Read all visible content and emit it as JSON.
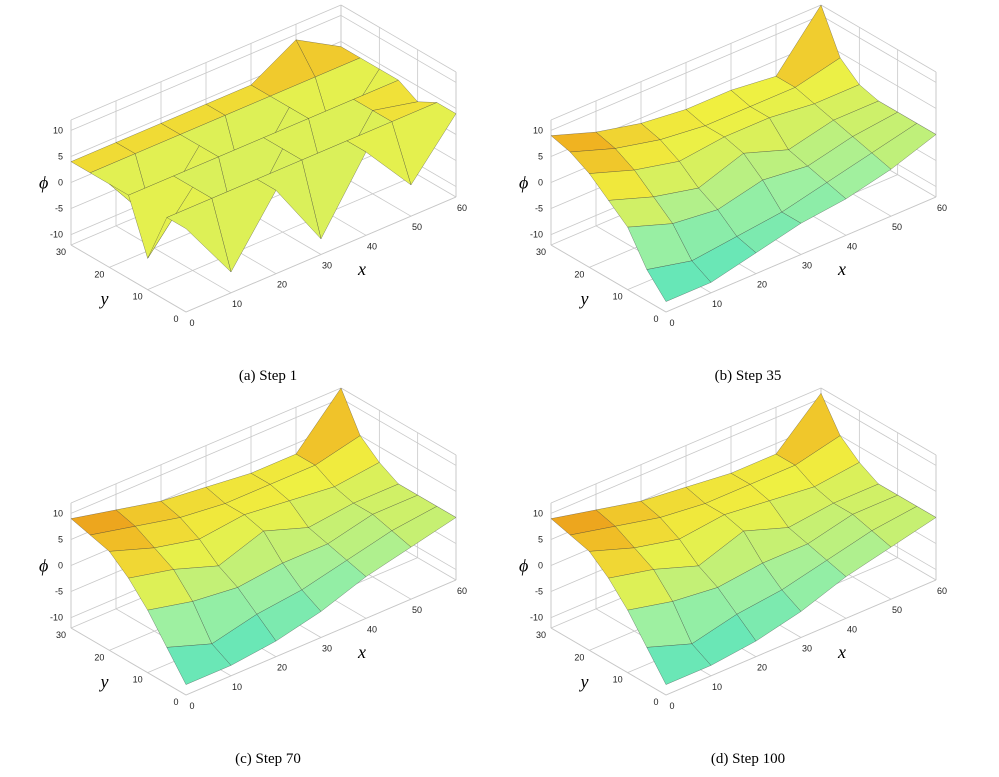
{
  "chart_data": [
    {
      "type": "surface",
      "caption": "(a) Step 1",
      "xlabel": "x",
      "ylabel": "y",
      "zlabel": "ϕ",
      "x": [
        0,
        10,
        20,
        30,
        40,
        50,
        60
      ],
      "y": [
        0,
        5,
        10,
        15,
        20,
        25,
        30
      ],
      "z": [
        [
          4,
          -8,
          4,
          -9,
          4,
          -6,
          4
        ],
        [
          4,
          4,
          4,
          4,
          4,
          4,
          4
        ],
        [
          -6,
          4,
          -9,
          4,
          -8,
          4,
          2
        ],
        [
          4,
          4,
          4,
          4,
          4,
          4,
          4
        ],
        [
          4,
          -7,
          4,
          -8,
          4,
          -6,
          4
        ],
        [
          4,
          4,
          4,
          4,
          4,
          4,
          4
        ],
        [
          4,
          4,
          4,
          4,
          4,
          9,
          4
        ]
      ],
      "xlim": [
        0,
        60
      ],
      "ylim": [
        0,
        30
      ],
      "zlim": [
        -12,
        12
      ],
      "xticks": [
        0,
        10,
        20,
        30,
        40,
        50,
        60
      ],
      "yticks": [
        0,
        10,
        20,
        30
      ],
      "zticks": [
        -10,
        -5,
        0,
        5,
        10
      ]
    },
    {
      "type": "surface",
      "caption": "(b) Step 35",
      "xlabel": "x",
      "ylabel": "y",
      "zlabel": "ϕ",
      "x": [
        0,
        10,
        20,
        30,
        40,
        50,
        60
      ],
      "y": [
        0,
        5,
        10,
        15,
        20,
        25,
        30
      ],
      "z": [
        [
          -10,
          -10,
          -8,
          -6,
          -5,
          -3,
          0
        ],
        [
          -6,
          -8,
          -7,
          -6,
          -4,
          -2,
          0
        ],
        [
          0,
          -3,
          -4,
          -2,
          -3,
          -1,
          0
        ],
        [
          3,
          0,
          -2,
          1,
          -2,
          0,
          0
        ],
        [
          6,
          3,
          1,
          2,
          2,
          1,
          1
        ],
        [
          8,
          5,
          3,
          2,
          2,
          2,
          4
        ],
        [
          9,
          6,
          4,
          3,
          3,
          2,
          12
        ]
      ],
      "xlim": [
        0,
        60
      ],
      "ylim": [
        0,
        30
      ],
      "zlim": [
        -12,
        12
      ],
      "xticks": [
        0,
        10,
        20,
        30,
        40,
        50,
        60
      ],
      "yticks": [
        0,
        10,
        20,
        30
      ],
      "zticks": [
        -10,
        -5,
        0,
        5,
        10
      ]
    },
    {
      "type": "surface",
      "caption": "(c) Step 70",
      "xlabel": "x",
      "ylabel": "y",
      "zlabel": "ϕ",
      "x": [
        0,
        10,
        20,
        30,
        40,
        50,
        60
      ],
      "y": [
        0,
        5,
        10,
        15,
        20,
        25,
        30
      ],
      "z": [
        [
          -10,
          -10,
          -9,
          -7,
          -4,
          -2,
          0
        ],
        [
          -5,
          -8,
          -6,
          -5,
          -3,
          -1,
          0
        ],
        [
          0,
          -2,
          -3,
          -2,
          -2,
          0,
          0
        ],
        [
          4,
          2,
          -1,
          2,
          -1,
          0,
          0
        ],
        [
          7,
          4,
          2,
          3,
          2,
          1,
          2
        ],
        [
          8,
          6,
          4,
          3,
          3,
          3,
          5
        ],
        [
          9,
          7,
          5,
          4,
          3,
          3,
          12
        ]
      ],
      "xlim": [
        0,
        60
      ],
      "ylim": [
        0,
        30
      ],
      "zlim": [
        -12,
        12
      ],
      "xticks": [
        0,
        10,
        20,
        30,
        40,
        50,
        60
      ],
      "yticks": [
        0,
        10,
        20,
        30
      ],
      "zticks": [
        -10,
        -5,
        0,
        5,
        10
      ]
    },
    {
      "type": "surface",
      "caption": "(d) Step 100",
      "xlabel": "x",
      "ylabel": "y",
      "zlabel": "ϕ",
      "x": [
        0,
        10,
        20,
        30,
        40,
        50,
        60
      ],
      "y": [
        0,
        5,
        10,
        15,
        20,
        25,
        30
      ],
      "z": [
        [
          -10,
          -10,
          -9,
          -7,
          -4,
          -2,
          0
        ],
        [
          -5,
          -8,
          -6,
          -5,
          -3,
          -1,
          0
        ],
        [
          0,
          -2,
          -3,
          -2,
          -2,
          0,
          0
        ],
        [
          4,
          2,
          -1,
          2,
          -1,
          0,
          0
        ],
        [
          7,
          4,
          2,
          3,
          2,
          1,
          2
        ],
        [
          8,
          6,
          4,
          3,
          3,
          3,
          5
        ],
        [
          9,
          7,
          5,
          4,
          3,
          3,
          11
        ]
      ],
      "xlim": [
        0,
        60
      ],
      "ylim": [
        0,
        30
      ],
      "zlim": [
        -12,
        12
      ],
      "xticks": [
        0,
        10,
        20,
        30,
        40,
        50,
        60
      ],
      "yticks": [
        0,
        10,
        20,
        30
      ],
      "zticks": [
        -10,
        -5,
        0,
        5,
        10
      ]
    }
  ]
}
